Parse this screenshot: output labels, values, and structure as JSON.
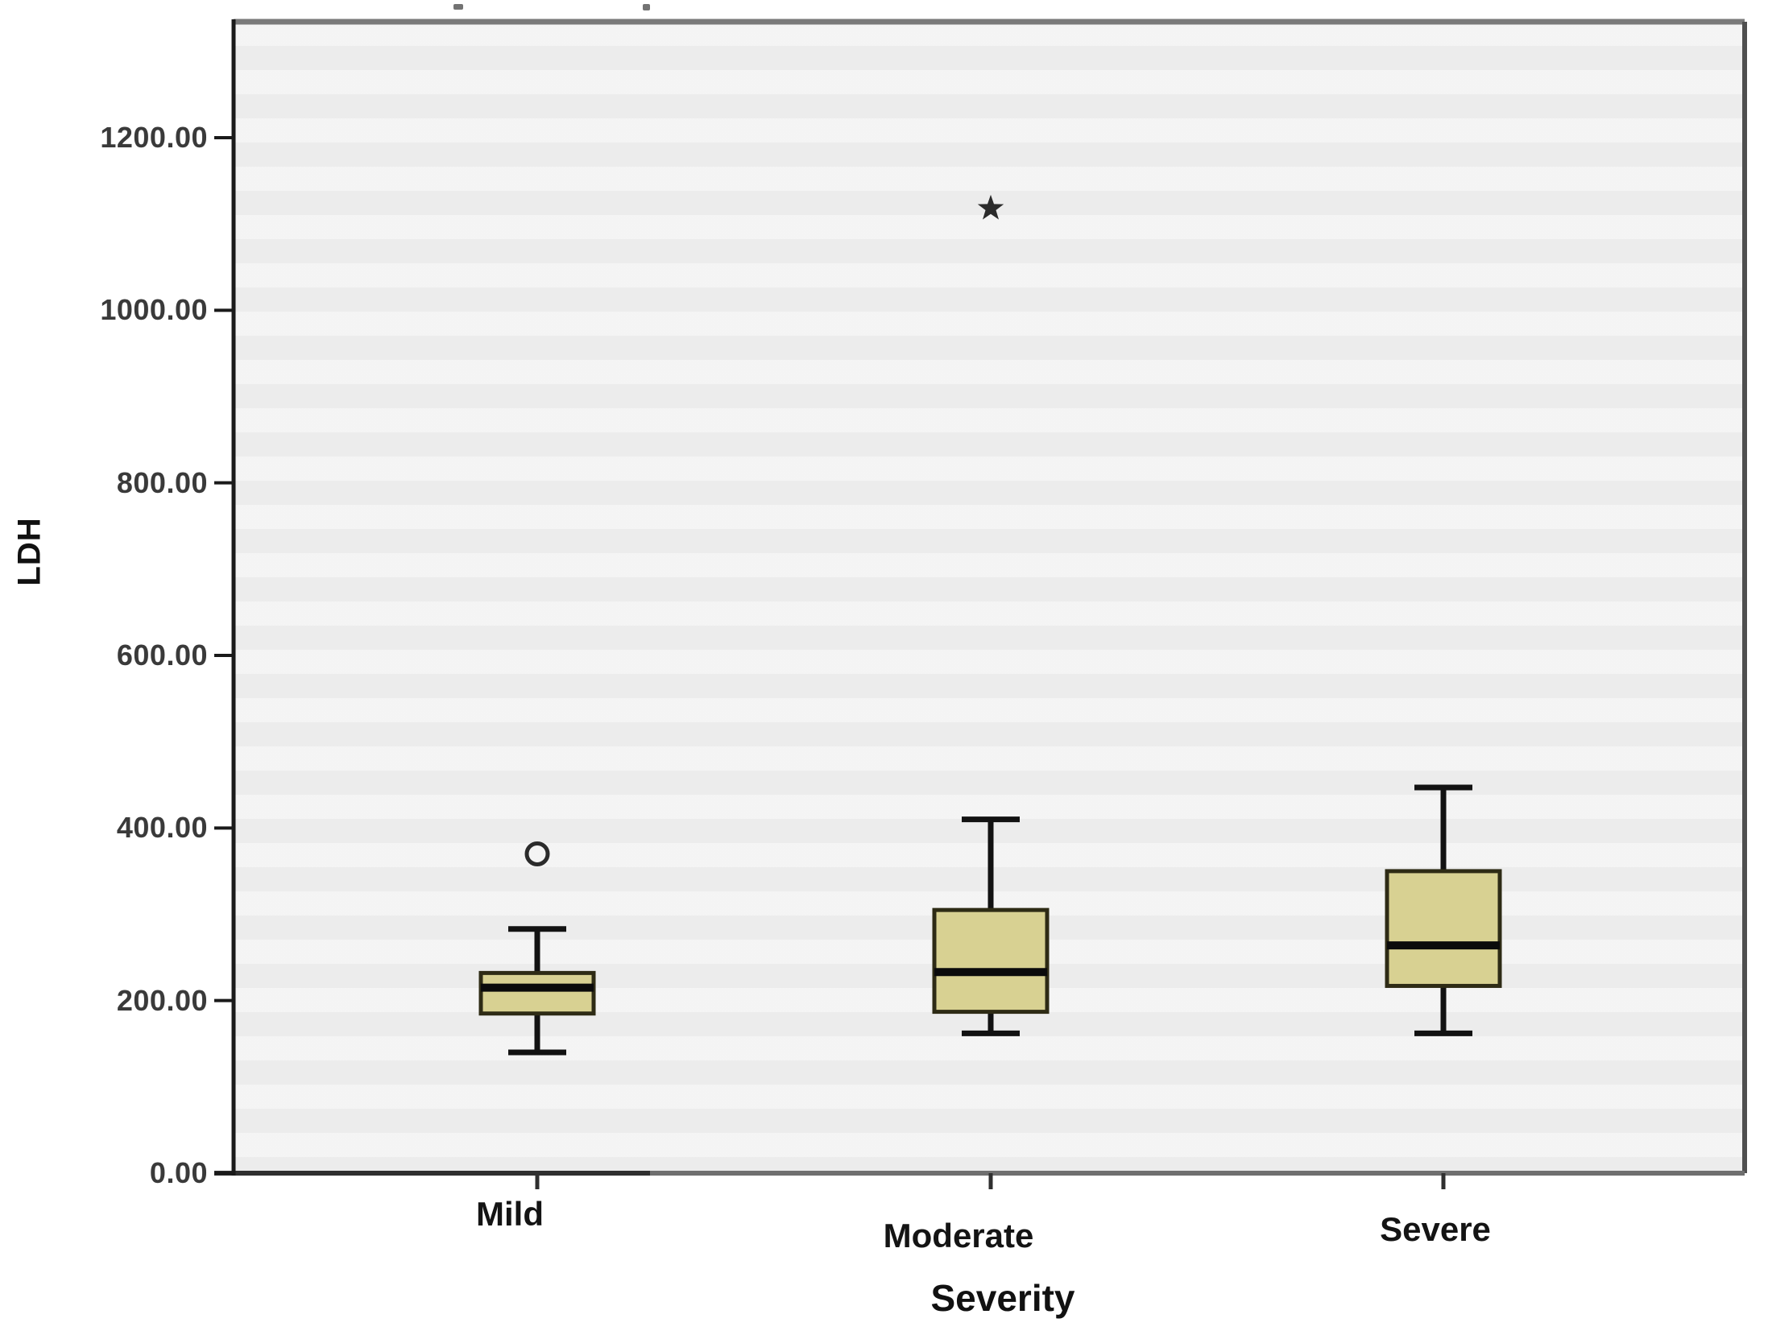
{
  "chart_data": {
    "type": "boxplot",
    "title": "",
    "xlabel": "Severity",
    "ylabel": "LDH",
    "categories": [
      "Mild",
      "Moderate",
      "Severe"
    ],
    "y_ticks": [
      0,
      200,
      400,
      600,
      800,
      1000,
      1200
    ],
    "y_tick_labels": [
      "0.00",
      "200.00",
      "400.00",
      "600.00",
      "800.00",
      "1000.00",
      "1200.00"
    ],
    "ylim": [
      0,
      1334
    ],
    "grid": "off",
    "legend": "none",
    "series": [
      {
        "category": "Mild",
        "whisker_low": 140,
        "q1": 185,
        "median": 215,
        "q3": 232,
        "whisker_high": 283,
        "outliers": [
          {
            "value": 370,
            "marker": "circle"
          }
        ]
      },
      {
        "category": "Moderate",
        "whisker_low": 162,
        "q1": 187,
        "median": 233,
        "q3": 305,
        "whisker_high": 410,
        "outliers": [
          {
            "value": 1118,
            "marker": "star"
          }
        ]
      },
      {
        "category": "Severe",
        "whisker_low": 162,
        "q1": 217,
        "median": 264,
        "q3": 350,
        "whisker_high": 447,
        "outliers": []
      }
    ],
    "colors": {
      "box_fill": "#d8d192",
      "box_border": "#2e2b15",
      "median": "#0b0b0b",
      "whisker": "#121212",
      "outlier": "#2b2b2b",
      "plot_bg": "#f0f0f0",
      "frame_top": "#7a7a7a",
      "frame_right": "#4f4f4f",
      "frame_bottom": "#6f6f6f",
      "frame_bottom_dark_segment": "#2f2f2f",
      "y_axis": "#1a1a1a",
      "tick": "#2f2f2f",
      "tick_text": "#3a3a3a"
    }
  }
}
